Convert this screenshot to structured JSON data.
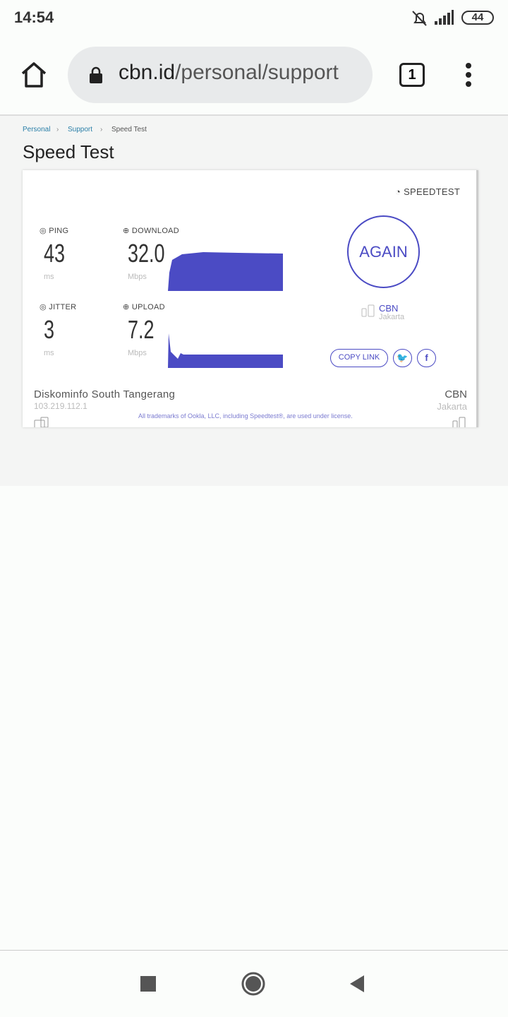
{
  "status": {
    "time": "14:54",
    "battery": "44"
  },
  "browser": {
    "url_host": "cbn.id",
    "url_path": "/personal/support",
    "tab_count": "1"
  },
  "breadcrumb": [
    {
      "label": "Personal"
    },
    {
      "label": "Support"
    },
    {
      "label": "Speed Test"
    }
  ],
  "page_title": "Speed Test",
  "speedtest": {
    "brand": "SPEEDTEST",
    "ping": {
      "label": "PING",
      "value": "43",
      "unit": "ms"
    },
    "jitter": {
      "label": "JITTER",
      "value": "3",
      "unit": "ms"
    },
    "download": {
      "label": "DOWNLOAD",
      "value": "32.0",
      "unit": "Mbps"
    },
    "upload": {
      "label": "UPLOAD",
      "value": "7.2",
      "unit": "Mbps"
    },
    "again_label": "AGAIN",
    "server": {
      "name": "CBN",
      "city": "Jakarta"
    },
    "copy_link": "COPY LINK",
    "isp": {
      "name": "Diskominfo South Tangerang",
      "ip": "103.219.112.1"
    },
    "host": {
      "name": "CBN",
      "city": "Jakarta"
    },
    "trademark": "All trademarks of Ookla, LLC, including Speedtest®, are used under license.",
    "accent": "#4b4bc4"
  }
}
